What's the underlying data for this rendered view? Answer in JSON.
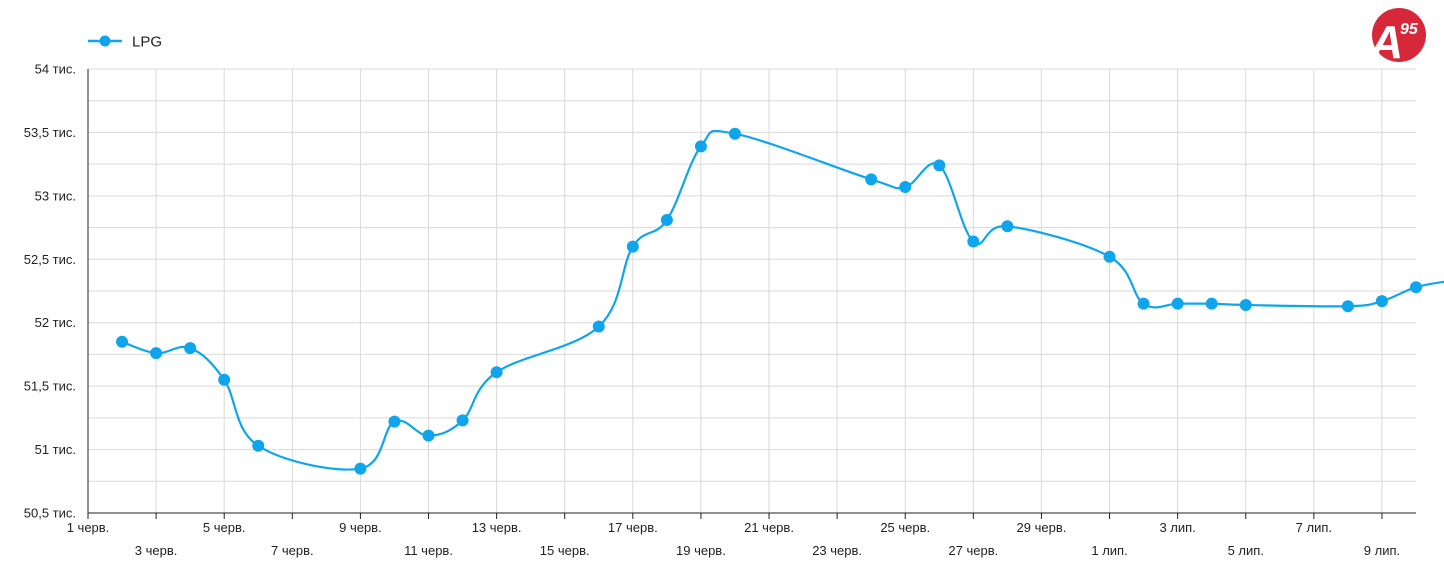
{
  "logo": {
    "label": "A95",
    "main": "A",
    "sup": "95",
    "color": "#d7283a"
  },
  "colors": {
    "series": "#0fa5ec",
    "grid": "#d9d9d9",
    "axis": "#222222"
  },
  "chart_data": {
    "type": "line",
    "legend_position": "top-left",
    "grid": true,
    "x_start": "2023-06-01",
    "y_ticks": [
      {
        "value": 50500,
        "label": "50,5 тис."
      },
      {
        "value": 51000,
        "label": "51 тис."
      },
      {
        "value": 51500,
        "label": "51,5 тис."
      },
      {
        "value": 52000,
        "label": "52 тис."
      },
      {
        "value": 52500,
        "label": "52,5 тис."
      },
      {
        "value": 53000,
        "label": "53 тис."
      },
      {
        "value": 53500,
        "label": "53,5 тис."
      },
      {
        "value": 54000,
        "label": "54 тис."
      }
    ],
    "ylim": [
      50500,
      54000
    ],
    "x_ticks": [
      {
        "date": "2023-06-01",
        "label": "1 черв."
      },
      {
        "date": "2023-06-03",
        "label": "3 черв."
      },
      {
        "date": "2023-06-05",
        "label": "5 черв."
      },
      {
        "date": "2023-06-07",
        "label": "7 черв."
      },
      {
        "date": "2023-06-09",
        "label": "9 черв."
      },
      {
        "date": "2023-06-11",
        "label": "11 черв."
      },
      {
        "date": "2023-06-13",
        "label": "13 черв."
      },
      {
        "date": "2023-06-15",
        "label": "15 черв."
      },
      {
        "date": "2023-06-17",
        "label": "17 черв."
      },
      {
        "date": "2023-06-19",
        "label": "19 черв."
      },
      {
        "date": "2023-06-21",
        "label": "21 черв."
      },
      {
        "date": "2023-06-23",
        "label": "23 черв."
      },
      {
        "date": "2023-06-25",
        "label": "25 черв."
      },
      {
        "date": "2023-06-27",
        "label": "27 черв."
      },
      {
        "date": "2023-06-29",
        "label": "29 черв."
      },
      {
        "date": "2023-07-01",
        "label": "1 лип."
      },
      {
        "date": "2023-07-03",
        "label": "3 лип."
      },
      {
        "date": "2023-07-05",
        "label": "5 лип."
      },
      {
        "date": "2023-07-07",
        "label": "7 лип."
      },
      {
        "date": "2023-07-09",
        "label": "9 лип."
      }
    ],
    "xlim": [
      "2023-06-01",
      "2023-07-10"
    ],
    "series": [
      {
        "name": "LPG",
        "points": [
          {
            "date": "2023-06-02",
            "value": 51850
          },
          {
            "date": "2023-06-03",
            "value": 51760
          },
          {
            "date": "2023-06-04",
            "value": 51800
          },
          {
            "date": "2023-06-05",
            "value": 51550
          },
          {
            "date": "2023-06-06",
            "value": 51030
          },
          {
            "date": "2023-06-09",
            "value": 50850
          },
          {
            "date": "2023-06-10",
            "value": 51220
          },
          {
            "date": "2023-06-11",
            "value": 51110
          },
          {
            "date": "2023-06-12",
            "value": 51230
          },
          {
            "date": "2023-06-13",
            "value": 51610
          },
          {
            "date": "2023-06-16",
            "value": 51970
          },
          {
            "date": "2023-06-17",
            "value": 52600
          },
          {
            "date": "2023-06-18",
            "value": 52810
          },
          {
            "date": "2023-06-19",
            "value": 53390
          },
          {
            "date": "2023-06-20",
            "value": 53490
          },
          {
            "date": "2023-06-24",
            "value": 53130
          },
          {
            "date": "2023-06-25",
            "value": 53070
          },
          {
            "date": "2023-06-26",
            "value": 53240
          },
          {
            "date": "2023-06-27",
            "value": 52640
          },
          {
            "date": "2023-06-28",
            "value": 52760
          },
          {
            "date": "2023-07-01",
            "value": 52520
          },
          {
            "date": "2023-07-02",
            "value": 52150
          },
          {
            "date": "2023-07-03",
            "value": 52150
          },
          {
            "date": "2023-07-04",
            "value": 52150
          },
          {
            "date": "2023-07-05",
            "value": 52140
          },
          {
            "date": "2023-07-08",
            "value": 52130
          },
          {
            "date": "2023-07-09",
            "value": 52170
          },
          {
            "date": "2023-07-10",
            "value": 52280
          },
          {
            "date": "2023-07-11",
            "value": 52330
          }
        ]
      }
    ]
  }
}
